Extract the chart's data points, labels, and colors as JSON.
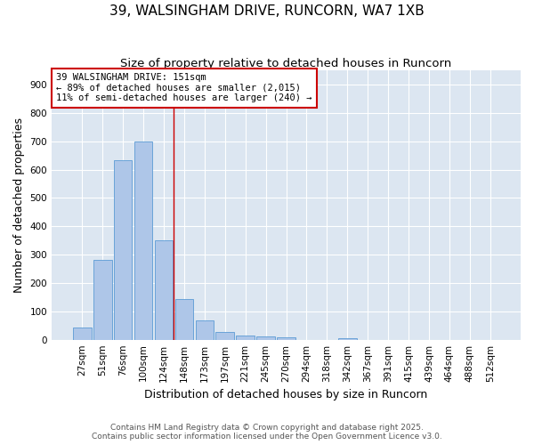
{
  "title": "39, WALSINGHAM DRIVE, RUNCORN, WA7 1XB",
  "subtitle": "Size of property relative to detached houses in Runcorn",
  "xlabel": "Distribution of detached houses by size in Runcorn",
  "ylabel": "Number of detached properties",
  "bar_labels": [
    "27sqm",
    "51sqm",
    "76sqm",
    "100sqm",
    "124sqm",
    "148sqm",
    "173sqm",
    "197sqm",
    "221sqm",
    "245sqm",
    "270sqm",
    "294sqm",
    "318sqm",
    "342sqm",
    "367sqm",
    "391sqm",
    "415sqm",
    "439sqm",
    "464sqm",
    "488sqm",
    "512sqm"
  ],
  "bar_values": [
    42,
    283,
    632,
    700,
    350,
    145,
    67,
    28,
    15,
    10,
    8,
    0,
    0,
    5,
    0,
    0,
    0,
    0,
    0,
    0,
    0
  ],
  "bar_color": "#aec6e8",
  "bar_edge_color": "#5b9bd5",
  "plot_bg_color": "#dce6f1",
  "grid_color": "#ffffff",
  "ylim_max": 950,
  "yticks": [
    0,
    100,
    200,
    300,
    400,
    500,
    600,
    700,
    800,
    900
  ],
  "vline_x_idx": 4.5,
  "vline_color": "#cc0000",
  "ann_title": "39 WALSINGHAM DRIVE: 151sqm",
  "ann_line1": "← 89% of detached houses are smaller (2,015)",
  "ann_line2": "11% of semi-detached houses are larger (240) →",
  "ann_box_edgecolor": "#cc0000",
  "footer_line1": "Contains HM Land Registry data © Crown copyright and database right 2025.",
  "footer_line2": "Contains public sector information licensed under the Open Government Licence v3.0.",
  "title_fontsize": 11,
  "subtitle_fontsize": 9.5,
  "ylabel_fontsize": 9,
  "xlabel_fontsize": 9,
  "tick_fontsize": 7.5,
  "ann_fontsize": 7.5,
  "footer_fontsize": 6.5
}
